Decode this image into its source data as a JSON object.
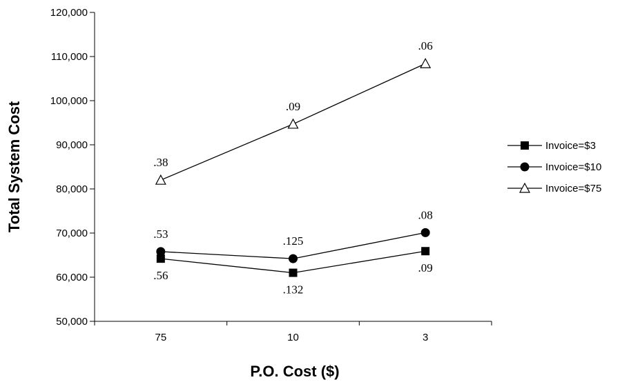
{
  "chart_data": {
    "type": "line",
    "xlabel": "P.O. Cost ($)",
    "ylabel": "Total System Cost",
    "categories": [
      "75",
      "10",
      "3"
    ],
    "ylim": [
      50000,
      120000
    ],
    "y_ticks": [
      "50,000",
      "60,000",
      "70,000",
      "80,000",
      "90,000",
      "100,000",
      "110,000",
      "120,000"
    ],
    "grid": false,
    "legend_position": "right",
    "series": [
      {
        "name": "Invoice=$3",
        "marker": "square",
        "values": [
          64200,
          61000,
          65900
        ],
        "labels": [
          ".56",
          ".132",
          ".09"
        ],
        "label_placement": "below"
      },
      {
        "name": "Invoice=$10",
        "marker": "circle",
        "values": [
          65800,
          64200,
          70100
        ],
        "labels": [
          ".53",
          ".125",
          ".08"
        ],
        "label_placement": "above"
      },
      {
        "name": "Invoice=$75",
        "marker": "triangle",
        "values": [
          82000,
          94700,
          108400
        ],
        "labels": [
          ".38",
          ".09",
          ".06"
        ],
        "label_placement": "above"
      }
    ]
  }
}
